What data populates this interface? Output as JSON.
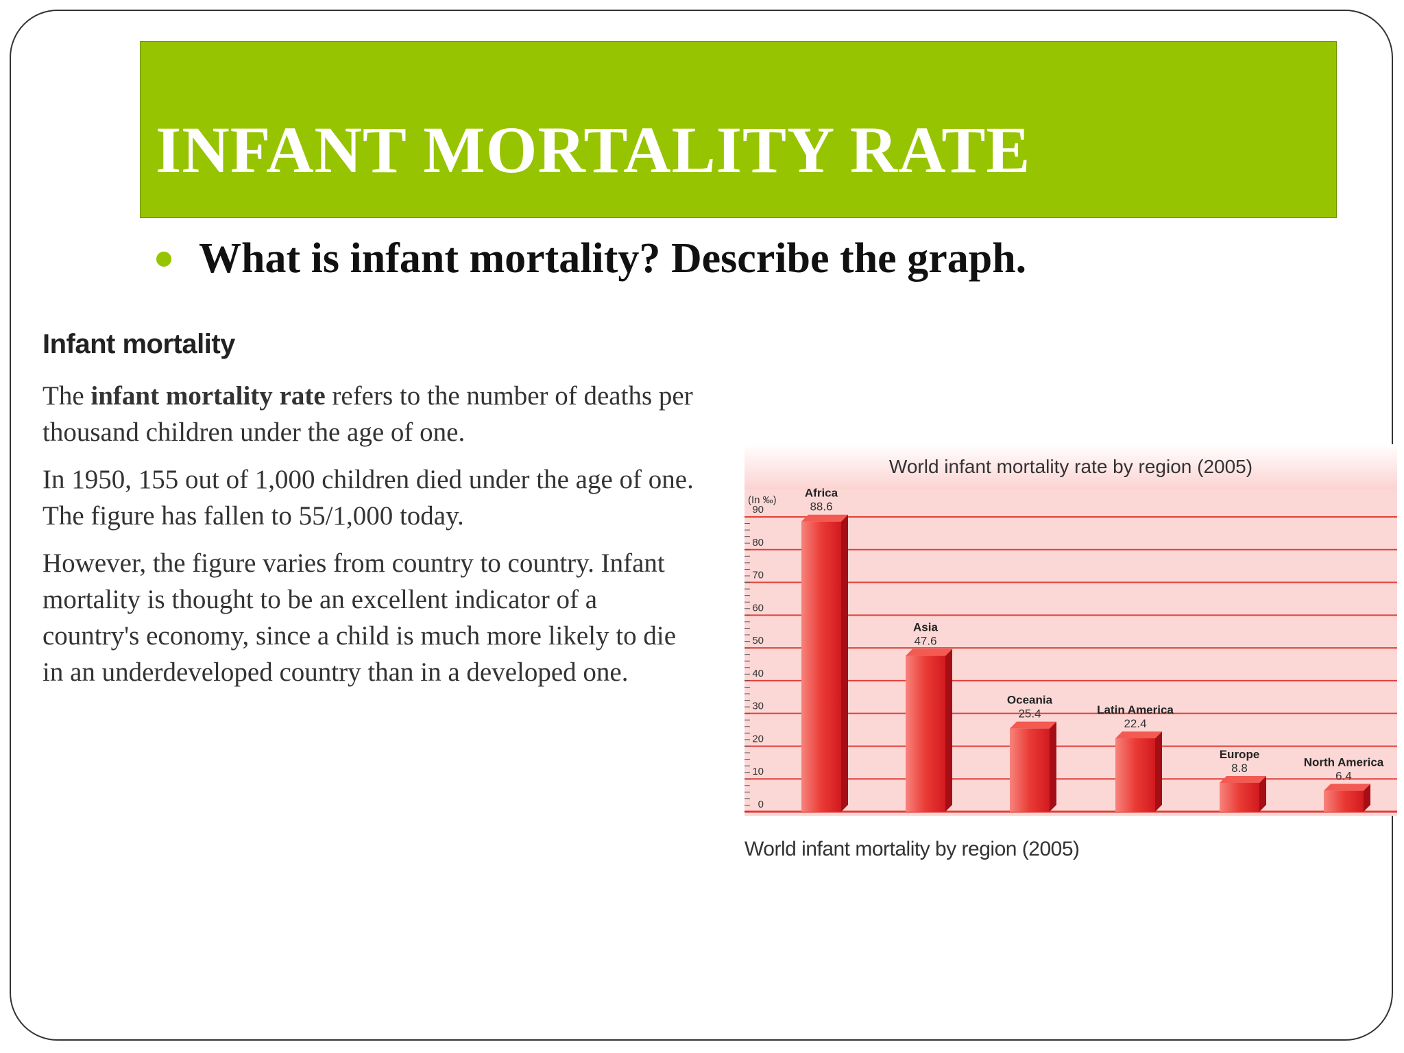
{
  "slide": {
    "title": "INFANT MORTALITY RATE",
    "bullet": "What is infant mortality? Describe the graph."
  },
  "text_section": {
    "heading": "Infant mortality",
    "para1_pre": "The ",
    "para1_bold": "infant mortality rate",
    "para1_post": " refers to the number of deaths per thousand children under the age of one.",
    "para2": "In 1950, 155 out of 1,000 children died under the age of one. The figure has fallen to 55/1,000 today.",
    "para3": "However, the figure varies from country to country. Infant mortality is thought to be an excellent indicator of a country's economy, since a child is much more likely to die in an underdeveloped country than in a developed one."
  },
  "chart_caption": "World infant mortality by region (2005)",
  "colors": {
    "title_bar": "#97c400",
    "bullet": "#97c400",
    "bar": "#e8262c",
    "chart_bg": "#fbd8d6",
    "gridline": "#e0403a"
  },
  "chart_data": {
    "type": "bar",
    "title": "World infant mortality rate by region (2005)",
    "unit_label": "(In ‰)",
    "categories": [
      "Africa",
      "Asia",
      "Oceania",
      "Latin America",
      "Europe",
      "North America"
    ],
    "values": [
      88.6,
      47.6,
      25.4,
      22.4,
      8.8,
      6.4
    ],
    "value_labels": [
      "88.6",
      "47.6",
      "25.4",
      "22.4",
      "8.8",
      "6.4"
    ],
    "yticks": [
      0,
      10,
      20,
      30,
      40,
      50,
      60,
      70,
      80,
      90
    ],
    "ylim": [
      0,
      93
    ],
    "grid": true,
    "xlabel": "",
    "ylabel": ""
  }
}
